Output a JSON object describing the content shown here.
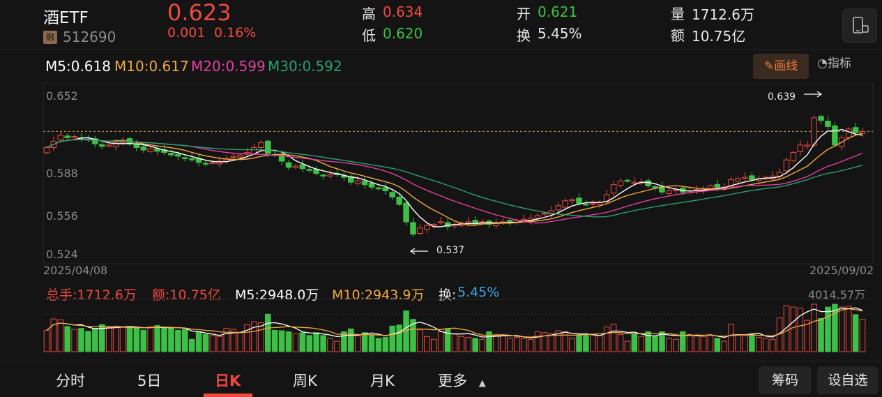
{
  "quote": {
    "name": "酒ETF",
    "margin_badge": "融",
    "code": "512690",
    "price": "0.623",
    "change": "0.001",
    "change_pct": "0.16%",
    "high_label": "高",
    "high": "0.634",
    "low_label": "低",
    "low": "0.620",
    "open_label": "开",
    "open": "0.621",
    "turnover_label": "换",
    "turnover": "5.45%",
    "volume_label": "量",
    "volume": "1712.6万",
    "amount_label": "额",
    "amount": "10.75亿"
  },
  "ma": {
    "m5": "M5:0.618",
    "m10": "M10:0.617",
    "m20": "M20:0.599",
    "m30": "M30:0.592"
  },
  "tools": {
    "draw": "画线",
    "indicator": "指标"
  },
  "price_axis": {
    "ticks": [
      "0.652",
      "0.588",
      "0.556",
      "0.524"
    ],
    "start_date": "2025/04/08",
    "end_date": "2025/09/02",
    "high_marker": "0.639",
    "low_marker": "0.537"
  },
  "volume_info": {
    "total": "总手:1712.6万",
    "amount": "额:10.75亿",
    "m5": "M5:2948.0万",
    "m10": "M10:2943.9万",
    "turnover_label": "换:",
    "turnover": "5.45%",
    "max": "4014.57万"
  },
  "tabs": [
    "分时",
    "5日",
    "日K",
    "周K",
    "月K",
    "更多"
  ],
  "right_buttons": [
    "筹码",
    "设自选"
  ],
  "colors": {
    "up": "#f04a3e",
    "down": "#3cc046",
    "m5": "#ffffff",
    "m10": "#f2a93b",
    "m20": "#e040a0",
    "m30": "#2aa070"
  },
  "chart_data": {
    "type": "candlestick",
    "x_range": [
      "2025/04/08",
      "2025/09/02"
    ],
    "ylim": [
      0.524,
      0.652
    ],
    "y_ticks": [
      0.652,
      0.588,
      0.556,
      0.524
    ],
    "last_price": 0.623,
    "annotations": [
      {
        "label": "0.639",
        "type": "high"
      },
      {
        "label": "0.537",
        "type": "low"
      }
    ],
    "close": [
      0.61,
      0.615,
      0.62,
      0.618,
      0.619,
      0.617,
      0.616,
      0.613,
      0.611,
      0.612,
      0.614,
      0.616,
      0.613,
      0.61,
      0.608,
      0.609,
      0.607,
      0.606,
      0.604,
      0.603,
      0.601,
      0.6,
      0.598,
      0.597,
      0.598,
      0.599,
      0.601,
      0.603,
      0.604,
      0.606,
      0.61,
      0.614,
      0.605,
      0.604,
      0.599,
      0.594,
      0.595,
      0.593,
      0.592,
      0.589,
      0.587,
      0.588,
      0.588,
      0.586,
      0.582,
      0.583,
      0.58,
      0.578,
      0.577,
      0.575,
      0.57,
      0.564,
      0.55,
      0.54,
      0.545,
      0.547,
      0.548,
      0.55,
      0.546,
      0.548,
      0.549,
      0.55,
      0.549,
      0.55,
      0.548,
      0.549,
      0.55,
      0.55,
      0.551,
      0.552,
      0.553,
      0.555,
      0.557,
      0.559,
      0.563,
      0.567,
      0.568,
      0.565,
      0.564,
      0.565,
      0.566,
      0.572,
      0.58,
      0.583,
      0.583,
      0.582,
      0.582,
      0.579,
      0.578,
      0.574,
      0.575,
      0.576,
      0.574,
      0.575,
      0.576,
      0.577,
      0.579,
      0.578,
      0.578,
      0.584,
      0.585,
      0.586,
      0.584,
      0.585,
      0.586,
      0.587,
      0.59,
      0.6,
      0.606,
      0.612,
      0.612,
      0.634,
      0.632,
      0.627,
      0.612,
      0.618,
      0.625,
      0.622,
      0.623
    ],
    "volume_scale_max": 4014.57
  }
}
